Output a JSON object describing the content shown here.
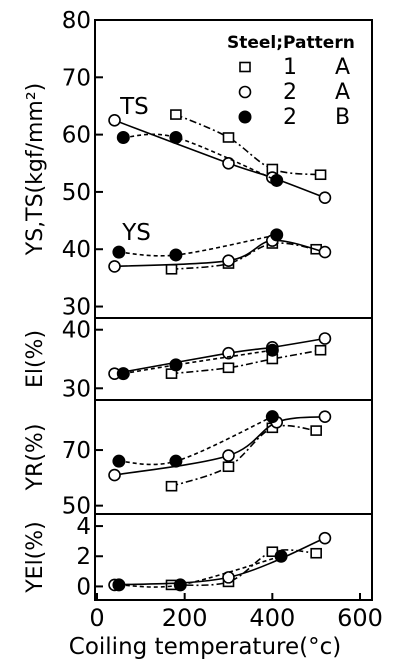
{
  "chart_data": [
    {
      "type": "line",
      "ylabel": "YS,TS(kgf/mm²)",
      "ylim": [
        28,
        80
      ],
      "yticks": [
        30,
        40,
        50,
        60,
        70,
        80
      ],
      "legend": {
        "title": "Steel;Pattern",
        "entries": [
          {
            "symbol": "square",
            "steel": "1",
            "pattern": "A"
          },
          {
            "symbol": "open-circle",
            "steel": "2",
            "pattern": "A"
          },
          {
            "symbol": "filled-circle",
            "steel": "2",
            "pattern": "B"
          }
        ],
        "placement": "top-right"
      },
      "annotations": [
        {
          "text": "TS",
          "x": 80,
          "y": 65
        },
        {
          "text": "YS",
          "x": 85,
          "y": 43
        }
      ],
      "series": [
        {
          "group": "TS",
          "marker": "square",
          "x": [
            180,
            300,
            400,
            510
          ],
          "y": [
            63.5,
            59.5,
            54,
            53
          ]
        },
        {
          "group": "TS",
          "marker": "open-circle",
          "x": [
            40,
            300,
            400,
            520
          ],
          "y": [
            62.5,
            55,
            52.5,
            49
          ]
        },
        {
          "group": "TS",
          "marker": "filled-circle",
          "x": [
            60,
            180,
            410
          ],
          "y": [
            59.5,
            59.5,
            52
          ]
        },
        {
          "group": "YS",
          "marker": "square",
          "x": [
            170,
            300,
            400,
            500
          ],
          "y": [
            36.5,
            37.5,
            41,
            40
          ]
        },
        {
          "group": "YS",
          "marker": "open-circle",
          "x": [
            40,
            300,
            400,
            520
          ],
          "y": [
            37,
            38,
            41.5,
            39.5
          ]
        },
        {
          "group": "YS",
          "marker": "filled-circle",
          "x": [
            50,
            180,
            410
          ],
          "y": [
            39.5,
            39,
            42.5
          ]
        }
      ]
    },
    {
      "type": "line",
      "ylabel": "El(%)",
      "ylim": [
        28,
        42
      ],
      "yticks": [
        30,
        40
      ],
      "series": [
        {
          "marker": "square",
          "x": [
            170,
            300,
            400,
            510
          ],
          "y": [
            32.5,
            33.5,
            35,
            36.5
          ]
        },
        {
          "marker": "open-circle",
          "x": [
            40,
            300,
            400,
            520
          ],
          "y": [
            32.5,
            36,
            37,
            38.5
          ]
        },
        {
          "marker": "filled-circle",
          "x": [
            60,
            180,
            400
          ],
          "y": [
            32.5,
            34,
            36.5
          ]
        }
      ]
    },
    {
      "type": "line",
      "ylabel": "YR(%)",
      "ylim": [
        47,
        88
      ],
      "yticks": [
        50,
        70
      ],
      "series": [
        {
          "marker": "square",
          "x": [
            170,
            300,
            400,
            500
          ],
          "y": [
            57,
            64,
            78,
            77
          ]
        },
        {
          "marker": "open-circle",
          "x": [
            40,
            300,
            410,
            520
          ],
          "y": [
            61,
            68,
            80,
            82
          ]
        },
        {
          "marker": "filled-circle",
          "x": [
            50,
            180,
            400
          ],
          "y": [
            66,
            66,
            82
          ]
        }
      ]
    },
    {
      "type": "line",
      "ylabel": "YEl(%)",
      "xlabel": "Coiling temperature(°c)",
      "xlim": [
        0,
        600
      ],
      "xticks": [
        0,
        200,
        400,
        600
      ],
      "ylim": [
        -0.9,
        4.8
      ],
      "yticks": [
        0,
        2,
        4
      ],
      "series": [
        {
          "marker": "square",
          "x": [
            170,
            300,
            400,
            500
          ],
          "y": [
            0.1,
            0.3,
            2.3,
            2.2
          ]
        },
        {
          "marker": "open-circle",
          "x": [
            40,
            300,
            520
          ],
          "y": [
            0.1,
            0.6,
            3.2
          ]
        },
        {
          "marker": "filled-circle",
          "x": [
            50,
            190,
            420
          ],
          "y": [
            0.1,
            0.1,
            2.0
          ]
        }
      ]
    }
  ]
}
